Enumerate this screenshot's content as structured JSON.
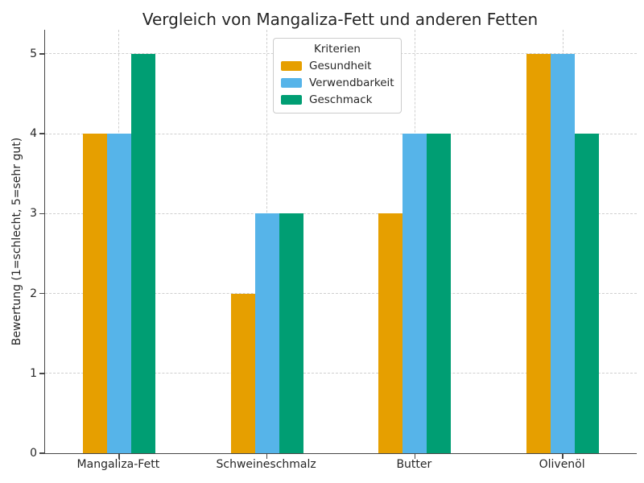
{
  "chart_data": {
    "type": "bar",
    "title": "Vergleich von Mangaliza-Fett und anderen Fetten",
    "xlabel": "",
    "ylabel": "Bewertung (1=schlecht, 5=sehr gut)",
    "categories": [
      "Mangaliza-Fett",
      "Schweineschmalz",
      "Butter",
      "Olivenöl"
    ],
    "series": [
      {
        "name": "Gesundheit",
        "color": "#E69F00",
        "values": [
          4,
          2,
          3,
          5
        ]
      },
      {
        "name": "Verwendbarkeit",
        "color": "#56B4E9",
        "values": [
          4,
          3,
          4,
          5
        ]
      },
      {
        "name": "Geschmack",
        "color": "#009E73",
        "values": [
          5,
          3,
          4,
          4
        ]
      }
    ],
    "yticks": [
      "0",
      "1",
      "2",
      "3",
      "4",
      "5"
    ],
    "ylim": [
      0,
      5.3
    ],
    "legend_title": "Kriterien",
    "legend_position": "upper center",
    "grid": "both-dashed"
  }
}
